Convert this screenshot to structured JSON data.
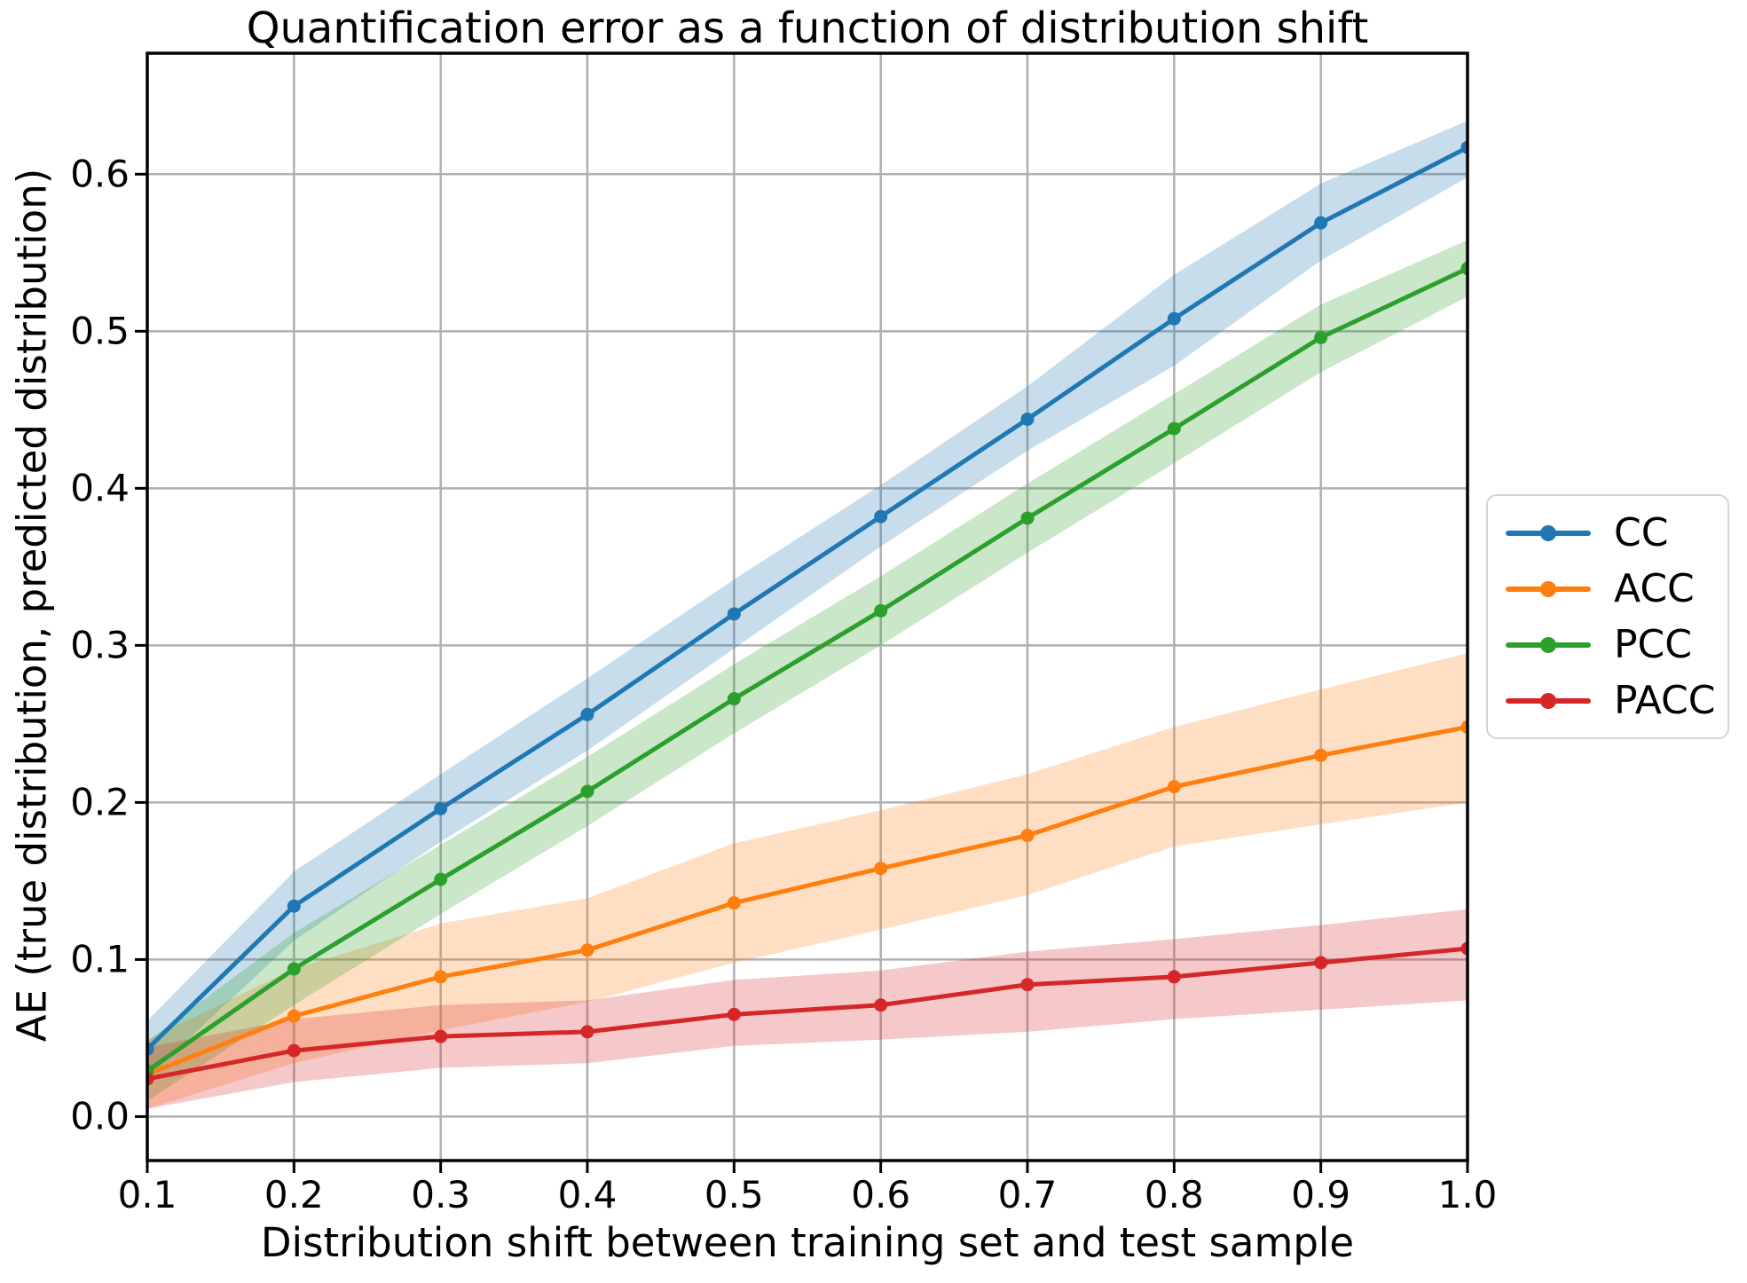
{
  "title": "Quantification error as a function of distribution shift",
  "colors": {
    "grid": "#b0b0b0",
    "spine": "#000000",
    "background": "#ffffff",
    "legend_border": "#d4d4d4"
  },
  "chart_data": {
    "type": "line",
    "title": "Quantification error as a function of distribution shift",
    "xlabel": "Distribution shift between training set and test sample",
    "ylabel": "AE (true distribution, predicted distribution)",
    "grid": true,
    "legend_position": "right-outside",
    "xlim": [
      0.1,
      1.0
    ],
    "ylim": [
      -0.028,
      0.677
    ],
    "x": [
      0.1,
      0.2,
      0.3,
      0.4,
      0.5,
      0.6,
      0.7,
      0.8,
      0.9,
      1.0
    ],
    "x_ticks": [
      0.1,
      0.2,
      0.3,
      0.4,
      0.5,
      0.6,
      0.7,
      0.8,
      0.9,
      1.0
    ],
    "x_tick_labels": [
      "0.1",
      "0.2",
      "0.3",
      "0.4",
      "0.5",
      "0.6",
      "0.7",
      "0.8",
      "0.9",
      "1.0"
    ],
    "y_ticks": [
      0.0,
      0.1,
      0.2,
      0.3,
      0.4,
      0.5,
      0.6
    ],
    "y_tick_labels": [
      "0.0",
      "0.1",
      "0.2",
      "0.3",
      "0.4",
      "0.5",
      "0.6"
    ],
    "band_opacity": 0.25,
    "series": [
      {
        "name": "CC",
        "color": "#1f77b4",
        "values": [
          0.043,
          0.134,
          0.196,
          0.256,
          0.32,
          0.382,
          0.444,
          0.508,
          0.569,
          0.617
        ],
        "band_lower": [
          0.025,
          0.112,
          0.175,
          0.233,
          0.298,
          0.363,
          0.424,
          0.478,
          0.545,
          0.598
        ],
        "band_upper": [
          0.061,
          0.156,
          0.218,
          0.279,
          0.342,
          0.402,
          0.465,
          0.536,
          0.594,
          0.634
        ]
      },
      {
        "name": "ACC",
        "color": "#ff7f0e",
        "values": [
          0.027,
          0.064,
          0.089,
          0.106,
          0.136,
          0.158,
          0.179,
          0.21,
          0.23,
          0.248
        ],
        "band_lower": [
          0.005,
          0.034,
          0.055,
          0.073,
          0.098,
          0.119,
          0.141,
          0.172,
          0.186,
          0.2
        ],
        "band_upper": [
          0.049,
          0.094,
          0.123,
          0.139,
          0.174,
          0.195,
          0.218,
          0.248,
          0.272,
          0.295
        ]
      },
      {
        "name": "PCC",
        "color": "#2ca02c",
        "values": [
          0.029,
          0.094,
          0.151,
          0.207,
          0.266,
          0.322,
          0.381,
          0.438,
          0.496,
          0.54
        ],
        "band_lower": [
          0.01,
          0.071,
          0.129,
          0.185,
          0.244,
          0.3,
          0.359,
          0.416,
          0.474,
          0.522
        ],
        "band_upper": [
          0.048,
          0.117,
          0.173,
          0.229,
          0.288,
          0.344,
          0.403,
          0.46,
          0.517,
          0.558
        ]
      },
      {
        "name": "PACC",
        "color": "#d62728",
        "values": [
          0.024,
          0.042,
          0.051,
          0.054,
          0.065,
          0.071,
          0.084,
          0.089,
          0.098,
          0.107
        ],
        "band_lower": [
          0.005,
          0.022,
          0.031,
          0.034,
          0.045,
          0.049,
          0.054,
          0.062,
          0.068,
          0.074
        ],
        "band_upper": [
          0.044,
          0.062,
          0.071,
          0.074,
          0.087,
          0.093,
          0.105,
          0.113,
          0.122,
          0.132
        ]
      }
    ]
  }
}
